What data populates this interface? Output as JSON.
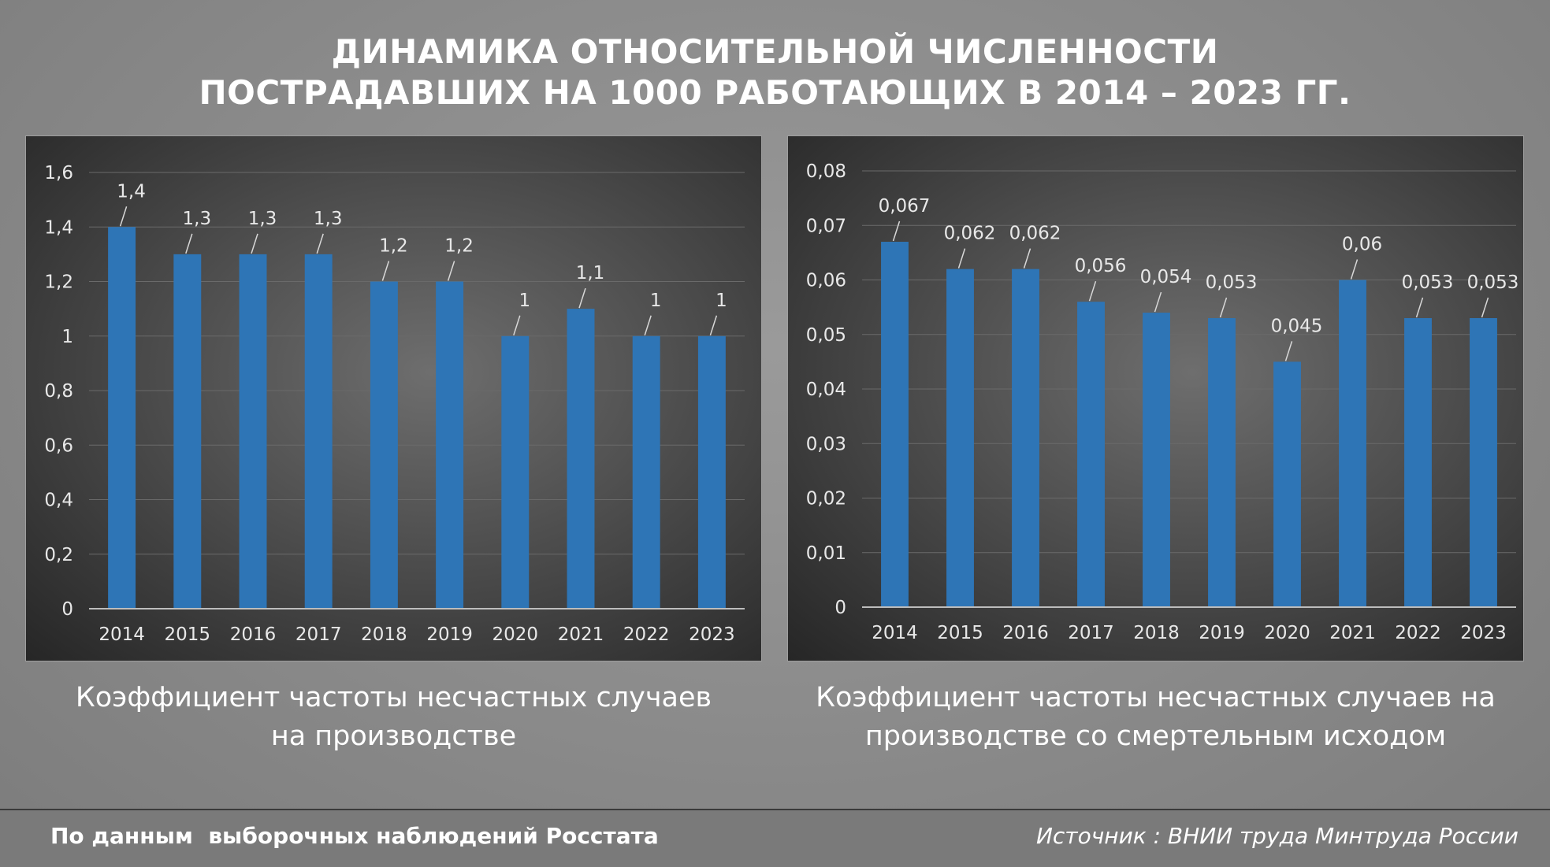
{
  "title": {
    "line1": "ДИНАМИКА ОТНОСИТЕЛЬНОЙ ЧИСЛЕННОСТИ",
    "line2": "ПОСТРАДАВШИХ НА 1000 РАБОТАЮЩИХ В 2014 – 2023 ГГ."
  },
  "chart_data": [
    {
      "type": "bar",
      "title": "Коэффициент частоты несчастных случаев на производстве",
      "categories": [
        "2014",
        "2015",
        "2016",
        "2017",
        "2018",
        "2019",
        "2020",
        "2021",
        "2022",
        "2023"
      ],
      "values": [
        1.4,
        1.3,
        1.3,
        1.3,
        1.2,
        1.2,
        1.0,
        1.1,
        1.0,
        1.0
      ],
      "data_labels": [
        "1,4",
        "1,3",
        "1,3",
        "1,3",
        "1,2",
        "1,2",
        "1",
        "1,1",
        "1",
        "1"
      ],
      "yticks": [
        "0",
        "0,2",
        "0,4",
        "0,6",
        "0,8",
        "1",
        "1,2",
        "1,4",
        "1,6"
      ],
      "ylim": [
        0,
        1.6
      ],
      "ystep": 0.2,
      "grid": true,
      "bar_color": "#2e75b6"
    },
    {
      "type": "bar",
      "title": "Коэффициент частоты несчастных случаев на производстве со смертельным исходом",
      "categories": [
        "2014",
        "2015",
        "2016",
        "2017",
        "2018",
        "2019",
        "2020",
        "2021",
        "2022",
        "2023"
      ],
      "values": [
        0.067,
        0.062,
        0.062,
        0.056,
        0.054,
        0.053,
        0.045,
        0.06,
        0.053,
        0.053
      ],
      "data_labels": [
        "0,067",
        "0,062",
        "0,062",
        "0,056",
        "0,054",
        "0,053",
        "0,045",
        "0,06",
        "0,053",
        "0,053"
      ],
      "yticks": [
        "0",
        "0,01",
        "0,02",
        "0,03",
        "0,04",
        "0,05",
        "0,06",
        "0,07",
        "0,08"
      ],
      "ylim": [
        0,
        0.08
      ],
      "ystep": 0.01,
      "grid": true,
      "bar_color": "#2e75b6"
    }
  ],
  "captions": {
    "left_line1": "Коэффициент частоты несчастных случаев",
    "left_line2": "на производстве",
    "right_line1": "Коэффициент частоты несчастных случаев на",
    "right_line2": "производстве со смертельным исходом"
  },
  "footer": {
    "left": "По данным  выборочных наблюдений Росстата",
    "right": "Источник : ВНИИ труда Минтруда России"
  }
}
